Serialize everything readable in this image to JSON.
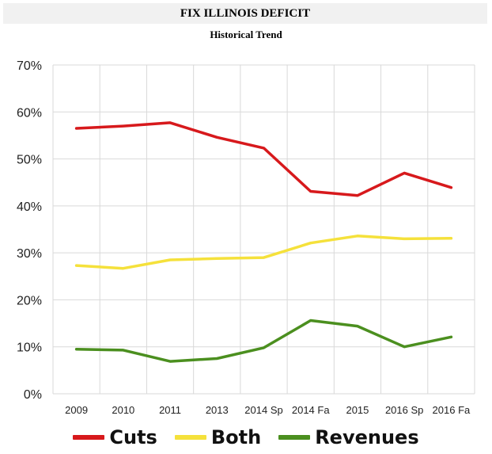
{
  "header": {
    "title": "FIX ILLINOIS DEFICIT",
    "subtitle": "Historical Trend"
  },
  "chart_data": {
    "type": "line",
    "title": "FIX ILLINOIS DEFICIT",
    "subtitle": "Historical Trend",
    "xlabel": "",
    "ylabel": "",
    "categories": [
      "2009",
      "2010",
      "2011",
      "2013",
      "2014 Sp",
      "2014 Fa",
      "2015",
      "2016 Sp",
      "2016 Fa"
    ],
    "ylim": [
      0,
      70
    ],
    "yticks": [
      0,
      10,
      20,
      30,
      40,
      50,
      60,
      70
    ],
    "ytick_labels": [
      "0%",
      "10%",
      "20%",
      "30%",
      "40%",
      "50%",
      "60%",
      "70%"
    ],
    "grid": true,
    "legend_position": "bottom",
    "series": [
      {
        "name": "Cuts",
        "color": "#d7191c",
        "values": [
          56.5,
          57.0,
          57.7,
          54.6,
          52.3,
          43.1,
          42.2,
          47.0,
          43.9
        ]
      },
      {
        "name": "Both",
        "color": "#f5e13b",
        "values": [
          27.3,
          26.7,
          28.5,
          28.8,
          29.0,
          32.1,
          33.6,
          33.0,
          33.1
        ]
      },
      {
        "name": "Revenues",
        "color": "#4b8f1f",
        "values": [
          9.5,
          9.3,
          6.9,
          7.5,
          9.8,
          15.6,
          14.4,
          10.0,
          12.1
        ]
      }
    ]
  }
}
